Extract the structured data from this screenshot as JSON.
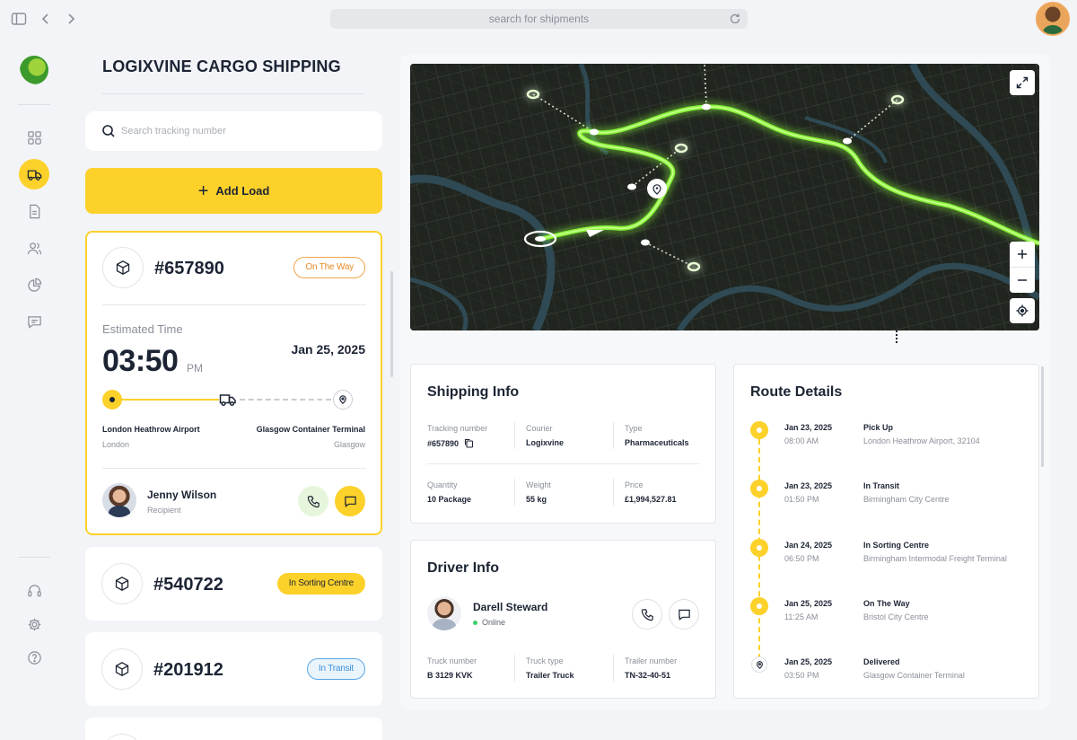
{
  "browser": {
    "url_placeholder": "search for shipments"
  },
  "sidebar": {
    "items": [
      {
        "name": "dashboard",
        "icon": "grid-icon"
      },
      {
        "name": "shipments",
        "icon": "truck-icon",
        "active": true
      },
      {
        "name": "documents",
        "icon": "document-icon"
      },
      {
        "name": "users",
        "icon": "users-icon"
      },
      {
        "name": "reports",
        "icon": "pie-chart-icon"
      },
      {
        "name": "messages",
        "icon": "chat-icon"
      }
    ],
    "bottom": [
      {
        "name": "support",
        "icon": "headset-icon"
      },
      {
        "name": "settings",
        "icon": "gear-icon"
      },
      {
        "name": "help",
        "icon": "help-icon"
      }
    ]
  },
  "left": {
    "title": "LOGIXVINE CARGO SHIPPING",
    "search_placeholder": "Search tracking number",
    "add_label": "Add Load",
    "selected": {
      "id": "#657890",
      "status": "On The Way",
      "est_label": "Estimated Time",
      "est_time": "03:50",
      "est_ampm": "PM",
      "est_date": "Jan 25, 2025",
      "progress": 0.5,
      "from_name": "London Heathrow Airport",
      "from_city": "London",
      "to_name": "Glasgow Container Terminal",
      "to_city": "Glasgow",
      "recipient_name": "Jenny Wilson",
      "recipient_role": "Recipient"
    },
    "others": [
      {
        "id": "#540722",
        "status": "In Sorting Centre"
      },
      {
        "id": "#201912",
        "status": "In Transit"
      }
    ]
  },
  "shipping_info": {
    "title": "Shipping Info",
    "fields": [
      {
        "label": "Tracking number",
        "value": "#657890"
      },
      {
        "label": "Courier",
        "value": "Logixvine"
      },
      {
        "label": "Type",
        "value": "Pharmaceuticals"
      },
      {
        "label": "Quantity",
        "value": "10 Package"
      },
      {
        "label": "Weight",
        "value": "55 kg"
      },
      {
        "label": "Price",
        "value": "£1,994,527.81"
      }
    ]
  },
  "driver_info": {
    "title": "Driver Info",
    "name": "Darell Steward",
    "status": "Online",
    "fields": [
      {
        "label": "Truck number",
        "value": "B 3129 KVK"
      },
      {
        "label": "Truck type",
        "value": "Trailer Truck"
      },
      {
        "label": "Trailer number",
        "value": "TN-32-40-51"
      }
    ]
  },
  "route_details": {
    "title": "Route Details",
    "steps": [
      {
        "date": "Jan 23, 2025",
        "time": "08:00 AM",
        "status": "Pick Up",
        "place": "London Heathrow Airport, 32104"
      },
      {
        "date": "Jan 23, 2025",
        "time": "01:50 PM",
        "status": "In Transit",
        "place": "Birmingham City Centre"
      },
      {
        "date": "Jan 24, 2025",
        "time": "06:50 PM",
        "status": "In Sorting Centre",
        "place": "Birmingham Intermodal Freight Terminal"
      },
      {
        "date": "Jan 25, 2025",
        "time": "11:25 AM",
        "status": "On The Way",
        "place": "Bristol City Centre"
      },
      {
        "date": "Jan 25, 2025",
        "time": "03:50 PM",
        "status": "Delivered",
        "place": "Glasgow Container Terminal"
      }
    ]
  },
  "colors": {
    "accent": "#fcd12a",
    "route_glow": "#8cff3a",
    "text": "#1c2434",
    "muted": "#8a8f99"
  }
}
